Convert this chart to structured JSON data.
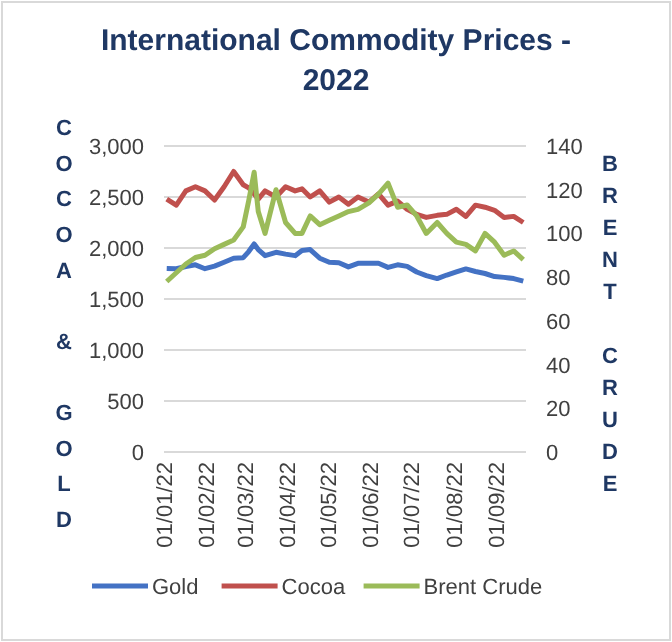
{
  "chart_data": {
    "type": "line",
    "title": "International Commodity Prices - 2022",
    "ylabel": "COCOA & GOLD",
    "y2label": "BRENT CRUDE",
    "x": [
      "2022-01-03",
      "2022-01-10",
      "2022-01-17",
      "2022-01-24",
      "2022-01-31",
      "2022-02-07",
      "2022-02-14",
      "2022-02-21",
      "2022-02-28",
      "2022-03-04",
      "2022-03-08",
      "2022-03-11",
      "2022-03-16",
      "2022-03-24",
      "2022-03-31",
      "2022-04-07",
      "2022-04-12",
      "2022-04-18",
      "2022-04-25",
      "2022-05-02",
      "2022-05-09",
      "2022-05-16",
      "2022-05-23",
      "2022-05-31",
      "2022-06-07",
      "2022-06-14",
      "2022-06-21",
      "2022-06-28",
      "2022-07-05",
      "2022-07-12",
      "2022-07-20",
      "2022-07-27",
      "2022-08-03",
      "2022-08-10",
      "2022-08-17",
      "2022-08-24",
      "2022-08-31",
      "2022-09-07",
      "2022-09-14",
      "2022-09-21"
    ],
    "series": [
      {
        "name": "Gold",
        "color": "#4472c4",
        "values": [
          1800,
          1797,
          1818,
          1835,
          1797,
          1822,
          1860,
          1900,
          1905,
          1965,
          2040,
          1985,
          1925,
          1958,
          1940,
          1925,
          1975,
          1985,
          1900,
          1860,
          1855,
          1815,
          1850,
          1850,
          1850,
          1810,
          1835,
          1820,
          1765,
          1730,
          1700,
          1735,
          1765,
          1795,
          1770,
          1750,
          1720,
          1712,
          1700,
          1675
        ]
      },
      {
        "name": "Cocoa",
        "color": "#c0504d",
        "values": [
          2480,
          2420,
          2560,
          2600,
          2560,
          2470,
          2600,
          2750,
          2620,
          2590,
          2530,
          2480,
          2560,
          2500,
          2600,
          2560,
          2580,
          2500,
          2560,
          2450,
          2500,
          2430,
          2500,
          2450,
          2530,
          2420,
          2460,
          2380,
          2330,
          2300,
          2320,
          2330,
          2380,
          2310,
          2420,
          2400,
          2370,
          2300,
          2310,
          2250
        ]
      },
      {
        "name": "Brent Crude",
        "color": "#9bbb59",
        "axis": "y2",
        "values": [
          78,
          82,
          86,
          89,
          90,
          93,
          95,
          97,
          103,
          115,
          128,
          110,
          100,
          120,
          105,
          100,
          100,
          108,
          104,
          106,
          108,
          110,
          111,
          114,
          118,
          123,
          112,
          113,
          108,
          100,
          105,
          100,
          96,
          95,
          92,
          100,
          96,
          90,
          92,
          88
        ]
      }
    ],
    "xlim": [
      "2022-01-01",
      "2022-09-23"
    ],
    "xticks": [
      {
        "value": "2022-01-01",
        "label": "01/01/22"
      },
      {
        "value": "2022-02-01",
        "label": "01/02/22"
      },
      {
        "value": "2022-03-01",
        "label": "01/03/22"
      },
      {
        "value": "2022-04-01",
        "label": "01/04/22"
      },
      {
        "value": "2022-05-01",
        "label": "01/05/22"
      },
      {
        "value": "2022-06-01",
        "label": "01/06/22"
      },
      {
        "value": "2022-07-01",
        "label": "01/07/22"
      },
      {
        "value": "2022-08-01",
        "label": "01/08/22"
      },
      {
        "value": "2022-09-01",
        "label": "01/09/22"
      }
    ],
    "ylim": [
      0,
      3000
    ],
    "yticks": [
      {
        "value": 0,
        "label": "0"
      },
      {
        "value": 500,
        "label": "500"
      },
      {
        "value": 1000,
        "label": "1,000"
      },
      {
        "value": 1500,
        "label": "1,500"
      },
      {
        "value": 2000,
        "label": "2,000"
      },
      {
        "value": 2500,
        "label": "2,500"
      },
      {
        "value": 3000,
        "label": "3,000"
      }
    ],
    "y2lim": [
      0,
      140
    ],
    "y2ticks": [
      0,
      20,
      40,
      60,
      80,
      100,
      120,
      140
    ],
    "grid": "y",
    "legend": "bottom",
    "marker": "none",
    "line_style": "solid"
  }
}
